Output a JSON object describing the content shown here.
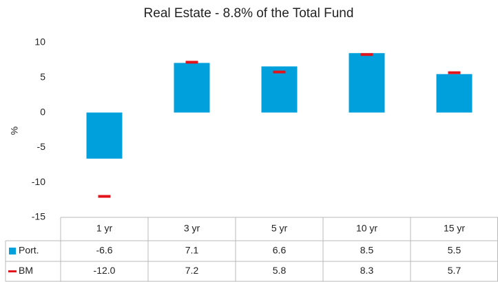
{
  "chart_data": {
    "type": "bar",
    "title": "Real Estate - 8.8% of the Total Fund",
    "y_label": "%",
    "categories": [
      "1 yr",
      "3 yr",
      "5 yr",
      "10 yr",
      "15 yr"
    ],
    "series": [
      {
        "name": "Port.",
        "color": "#00a0dc",
        "type": "bar",
        "values": [
          -6.6,
          7.1,
          6.6,
          8.5,
          5.5
        ]
      },
      {
        "name": "BM",
        "color": "#e3131b",
        "type": "marker",
        "values": [
          -12.0,
          7.2,
          5.8,
          8.3,
          5.7
        ],
        "value_labels": [
          "-12.0",
          "7.2",
          "5.8",
          "8.3",
          "5.7"
        ]
      }
    ],
    "ylim": [
      -15,
      10
    ],
    "yticks": [
      -15,
      -10,
      -5,
      0,
      5,
      10
    ],
    "grid": false
  }
}
